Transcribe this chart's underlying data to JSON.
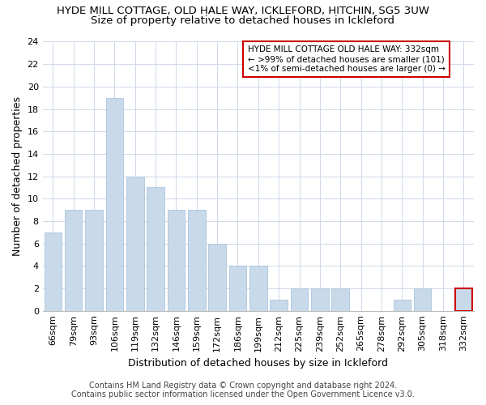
{
  "title": "HYDE MILL COTTAGE, OLD HALE WAY, ICKLEFORD, HITCHIN, SG5 3UW",
  "subtitle": "Size of property relative to detached houses in Ickleford",
  "xlabel": "Distribution of detached houses by size in Ickleford",
  "ylabel": "Number of detached properties",
  "categories": [
    "66sqm",
    "79sqm",
    "93sqm",
    "106sqm",
    "119sqm",
    "132sqm",
    "146sqm",
    "159sqm",
    "172sqm",
    "186sqm",
    "199sqm",
    "212sqm",
    "225sqm",
    "239sqm",
    "252sqm",
    "265sqm",
    "278sqm",
    "292sqm",
    "305sqm",
    "318sqm",
    "332sqm"
  ],
  "values": [
    7,
    9,
    9,
    19,
    12,
    11,
    9,
    9,
    6,
    4,
    4,
    1,
    2,
    2,
    2,
    0,
    0,
    1,
    2,
    0,
    2
  ],
  "bar_color": "#c8daea",
  "bar_edge_color": "#aac4de",
  "highlight_bar_index": 20,
  "highlight_bar_edge_color": "#cc0000",
  "box_text_line1": "HYDE MILL COTTAGE OLD HALE WAY: 332sqm",
  "box_text_line2": "← >99% of detached houses are smaller (101)",
  "box_text_line3": "<1% of semi-detached houses are larger (0) →",
  "box_edge_color": "#cc0000",
  "ylim": [
    0,
    24
  ],
  "yticks": [
    0,
    2,
    4,
    6,
    8,
    10,
    12,
    14,
    16,
    18,
    20,
    22,
    24
  ],
  "footer_line1": "Contains HM Land Registry data © Crown copyright and database right 2024.",
  "footer_line2": "Contains public sector information licensed under the Open Government Licence v3.0.",
  "title_fontsize": 9.5,
  "subtitle_fontsize": 9.5,
  "axis_label_fontsize": 9,
  "tick_fontsize": 8,
  "footer_fontsize": 7,
  "annotation_fontsize": 7.5
}
